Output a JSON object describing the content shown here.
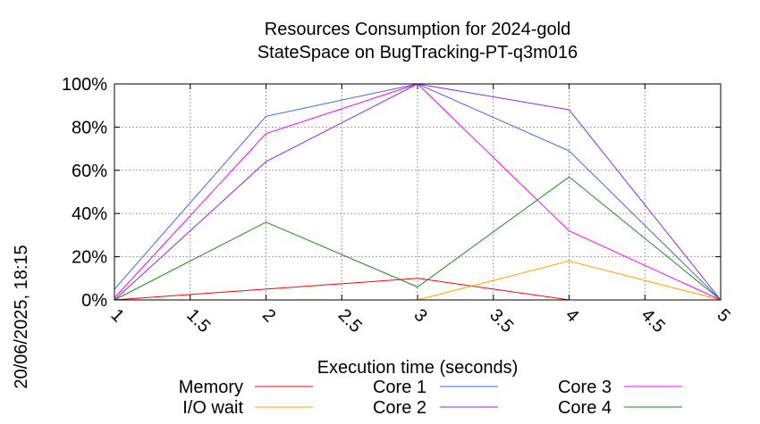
{
  "chart_data": {
    "type": "line",
    "title": "Resources Consumption for 2024-gold",
    "subtitle": "StateSpace on BugTracking-PT-q3m016",
    "xlabel": "Execution time (seconds)",
    "ylabel": "",
    "side_label": "20/06/2025, 18:15",
    "x": [
      1,
      2,
      3,
      4,
      5
    ],
    "xlim": [
      1,
      5
    ],
    "ylim": [
      0,
      100
    ],
    "x_ticks": [
      "1",
      "1.5",
      "2",
      "2.5",
      "3",
      "3.5",
      "4",
      "4.5",
      "5"
    ],
    "y_ticks": [
      "0%",
      "20%",
      "40%",
      "60%",
      "80%",
      "100%"
    ],
    "grid": true,
    "legend_position": "bottom",
    "series": [
      {
        "name": "Memory",
        "color": "#ff0000",
        "values": [
          0,
          5,
          10,
          0,
          0
        ]
      },
      {
        "name": "I/O wait",
        "color": "#ffa500",
        "values": [
          0,
          0,
          0,
          18,
          0
        ]
      },
      {
        "name": "Core 1",
        "color": "#4169e1",
        "values": [
          5,
          85,
          100,
          69,
          0
        ]
      },
      {
        "name": "Core 2",
        "color": "#8a2be2",
        "values": [
          0,
          64,
          100,
          88,
          0
        ]
      },
      {
        "name": "Core 3",
        "color": "#ff00ff",
        "values": [
          1,
          77,
          100,
          32,
          0
        ]
      },
      {
        "name": "Core 4",
        "color": "#228b22",
        "values": [
          0,
          36,
          6,
          57,
          0
        ]
      }
    ]
  }
}
